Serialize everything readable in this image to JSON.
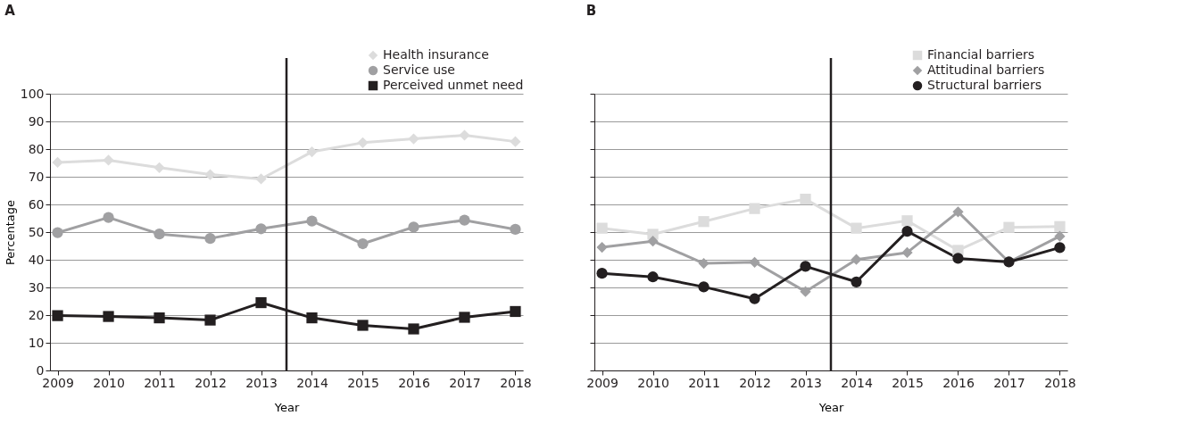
{
  "chart_data": [
    {
      "type": "line",
      "title": "A",
      "xlabel": "Year",
      "ylabel": "Percentage",
      "x": [
        2009,
        2010,
        2011,
        2012,
        2013,
        2014,
        2015,
        2016,
        2017,
        2018
      ],
      "xlim": [
        2008.85,
        2018.15
      ],
      "xticks": [
        2009,
        2010,
        2011,
        2012,
        2013,
        2014,
        2015,
        2016,
        2017,
        2018
      ],
      "ylim": [
        0,
        100
      ],
      "yticks": [
        0,
        10,
        20,
        30,
        40,
        50,
        60,
        70,
        80,
        90,
        100
      ],
      "grid": "y",
      "legend": "top right",
      "line_style": "solid",
      "ref_lines": [
        {
          "axis": "x",
          "value": 2013.5,
          "color": "#231f20"
        }
      ],
      "series": [
        {
          "name": "Health insurance",
          "color": "#dcdcdc",
          "marker": "diamond",
          "values": [
            75.2,
            76,
            73.3,
            70.8,
            69.2,
            79,
            82.3,
            83.7,
            85,
            82.7
          ]
        },
        {
          "name": "Service use",
          "color": "#a0a0a2",
          "marker": "circle",
          "values": [
            49.8,
            55.3,
            49.3,
            47.7,
            51.2,
            54,
            45.8,
            51.8,
            54.3,
            51
          ]
        },
        {
          "name": "Perceived unmet need",
          "color": "#231f20",
          "marker": "square",
          "values": [
            19.8,
            19.5,
            19,
            18.2,
            24.5,
            19,
            16.3,
            15,
            19.2,
            21.3
          ]
        }
      ]
    },
    {
      "type": "line",
      "title": "B",
      "xlabel": "Year",
      "x": [
        2009,
        2010,
        2011,
        2012,
        2013,
        2014,
        2015,
        2016,
        2017,
        2018
      ],
      "xlim": [
        2008.85,
        2018.15
      ],
      "xticks": [
        2009,
        2010,
        2011,
        2012,
        2013,
        2014,
        2015,
        2016,
        2017,
        2018
      ],
      "ylim": [
        0,
        100
      ],
      "yticks": [
        0,
        10,
        20,
        30,
        40,
        50,
        60,
        70,
        80,
        90,
        100
      ],
      "tick_labels": "x",
      "grid": "y",
      "legend": "top right",
      "line_style": "solid",
      "ref_lines": [
        {
          "axis": "x",
          "value": 2013.5,
          "color": "#231f20"
        }
      ],
      "series": [
        {
          "name": "Financial barriers",
          "color": "#dcdcdc",
          "marker": "square",
          "values": [
            51.4,
            49.2,
            53.8,
            58.5,
            61.9,
            51.4,
            54.1,
            43.4,
            51.7,
            52
          ]
        },
        {
          "name": "Attitudinal barriers",
          "color": "#a0a0a2",
          "marker": "diamond",
          "values": [
            44.5,
            46.7,
            38.7,
            39.1,
            28.5,
            40.1,
            42.6,
            57.3,
            39.2,
            48.5
          ]
        },
        {
          "name": "Structural barriers",
          "color": "#231f20",
          "marker": "circle",
          "values": [
            35.1,
            33.8,
            30.2,
            25.9,
            37.6,
            32,
            50.3,
            40.5,
            39.2,
            44.4
          ]
        }
      ]
    }
  ]
}
